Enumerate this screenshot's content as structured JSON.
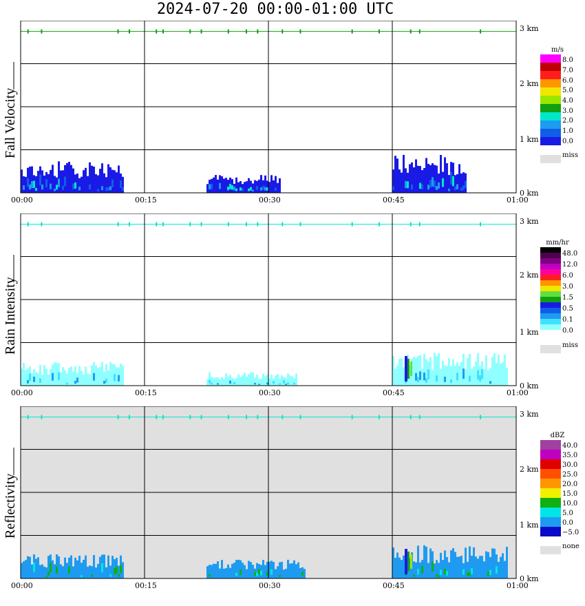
{
  "title": "2024-07-20  00:00-01:00 UTC",
  "x_ticks": [
    "00:00",
    "00:15",
    "00:30",
    "00:45",
    "01:00"
  ],
  "y_ticks": [
    "3 km",
    "2 km",
    "1 km",
    "0 km"
  ],
  "chart_data": [
    {
      "type": "heatmap",
      "title": "Fall Velocity",
      "ylabel": "Fall Velocity",
      "xlim": [
        "00:00",
        "01:00"
      ],
      "ylim_km": [
        0,
        3.2
      ],
      "grid": true,
      "background": "#ffffff",
      "colorbar": {
        "unit": "m/s",
        "colors": [
          "#1a1ae6",
          "#0f5fe6",
          "#1e9bf0",
          "#00e6c8",
          "#10a010",
          "#9be600",
          "#f0e600",
          "#ff9600",
          "#ff1e1e",
          "#c00000",
          "#ff00ff"
        ],
        "labels": [
          "0.0",
          "1.0",
          "2.0",
          "3.0",
          "4.0",
          "5.0",
          "6.0",
          "7.0",
          "8.0"
        ],
        "missing_label": "miss",
        "missing_color": "#e0e0e0"
      },
      "echo_segments": [
        {
          "start": "00:00",
          "end": "00:12.5",
          "top_km": 0.6
        },
        {
          "start": "00:22.5",
          "end": "00:31.5",
          "top_km": 0.35
        },
        {
          "start": "00:45.0",
          "end": "00:54.0",
          "top_km": 0.72
        }
      ],
      "top_band_km": 3.0,
      "dominant_color": "#1a1ae6"
    },
    {
      "type": "heatmap",
      "title": "Rain Intensity",
      "ylabel": "Rain Intensity",
      "xlim": [
        "00:00",
        "01:00"
      ],
      "ylim_km": [
        0,
        3.2
      ],
      "grid": true,
      "background": "#ffffff",
      "colorbar": {
        "unit": "mm/hr",
        "colors": [
          "#ffffff",
          "#90ffff",
          "#40e0ff",
          "#1e9bf0",
          "#0f5fe6",
          "#1a1ae6",
          "#10a010",
          "#60e040",
          "#f0e600",
          "#ff9600",
          "#ff1e1e",
          "#ff00a0",
          "#c000c0",
          "#800080",
          "#500050",
          "#000000"
        ],
        "labels": [
          "0.0",
          "0.1",
          "0.5",
          "1.5",
          "3.0",
          "6.0",
          "12.0",
          "48.0"
        ],
        "missing_label": "miss",
        "missing_color": "#e0e0e0"
      },
      "echo_segments": [
        {
          "start": "00:00",
          "end": "00:12.5",
          "top_km": 0.45
        },
        {
          "start": "00:22.5",
          "end": "00:33.5",
          "top_km": 0.25
        },
        {
          "start": "00:45.0",
          "end": "00:59.0",
          "top_km": 0.62
        }
      ],
      "top_band_km": 3.0,
      "dominant_color": "#90ffff"
    },
    {
      "type": "heatmap",
      "title": "Reflectivity",
      "ylabel": "Reflectivity",
      "xlim": [
        "00:00",
        "01:00"
      ],
      "ylim_km": [
        0,
        3.2
      ],
      "grid": true,
      "background": "#e0e0e0",
      "colorbar": {
        "unit": "dBZ",
        "colors": [
          "#0a0ac8",
          "#1e9bf0",
          "#00e6e6",
          "#10b010",
          "#f0f000",
          "#ff9600",
          "#ff5000",
          "#e00000",
          "#c000c0",
          "#a040a0"
        ],
        "labels": [
          "−5.0",
          "0.0",
          "5.0",
          "10.0",
          "15.0",
          "20.0",
          "25.0",
          "30.0",
          "35.0",
          "40.0"
        ],
        "missing_label": "none",
        "missing_color": "#e0e0e0"
      },
      "echo_segments": [
        {
          "start": "00:00",
          "end": "00:12.5",
          "top_km": 0.45
        },
        {
          "start": "00:22.5",
          "end": "00:34.5",
          "top_km": 0.35
        },
        {
          "start": "00:45.0",
          "end": "00:59.0",
          "top_km": 0.62
        }
      ],
      "top_band_km": 3.0,
      "dominant_color": "#1e9bf0"
    }
  ]
}
